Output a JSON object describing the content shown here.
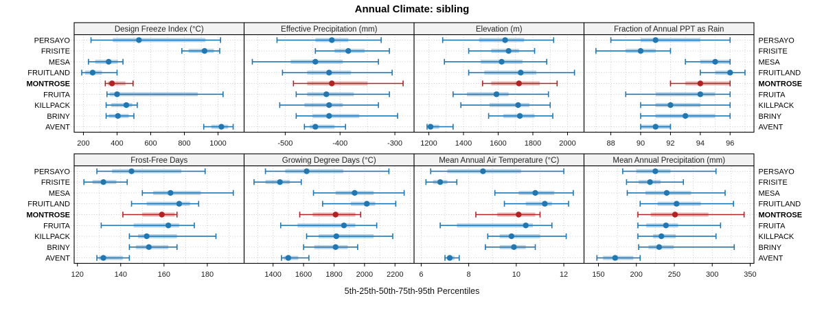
{
  "title": "Annual Climate: sibling",
  "caption": "5th-25th-50th-75th-95th Percentiles",
  "colors": {
    "series": "#1f77b4",
    "highlight": "#b22222",
    "band_opacity": 0.32,
    "grid": "#c3c3c3",
    "panel_header_bg": "#f2f2f2",
    "panel_border": "#000000",
    "text": "#000000",
    "tick_text": "#1a1a1a"
  },
  "stations": [
    "PERSAYO",
    "FRISITE",
    "MESA",
    "FRUITLAND",
    "MONTROSE",
    "FRUITA",
    "KILLPACK",
    "BRINY",
    "AVENT"
  ],
  "highlight_station": "MONTROSE",
  "chart_data": {
    "type": "scatter",
    "variant": "percentile-dot-interval-trellis",
    "percentiles": [
      5,
      25,
      50,
      75,
      95
    ],
    "categories": [
      "PERSAYO",
      "FRISITE",
      "MESA",
      "FRUITLAND",
      "MONTROSE",
      "FRUITA",
      "KILLPACK",
      "BRINY",
      "AVENT"
    ],
    "highlight": "MONTROSE",
    "grid": true,
    "legend": "none",
    "layout": {
      "rows": 2,
      "cols": 4
    },
    "panels": [
      {
        "title": "Design Freeze Index (°C)",
        "xticks": [
          200,
          400,
          600,
          800,
          1000
        ],
        "xlim": [
          145,
          1155
        ],
        "minor_step": 100,
        "values": [
          [
            245,
            375,
            530,
            925,
            1015
          ],
          [
            785,
            825,
            920,
            975,
            1010
          ],
          [
            230,
            270,
            350,
            405,
            435
          ],
          [
            190,
            210,
            255,
            310,
            400
          ],
          [
            330,
            345,
            370,
            450,
            495
          ],
          [
            340,
            355,
            400,
            880,
            1030
          ],
          [
            335,
            365,
            455,
            490,
            520
          ],
          [
            335,
            350,
            405,
            470,
            500
          ],
          [
            915,
            960,
            1020,
            1060,
            1090
          ]
        ]
      },
      {
        "title": "Effective Precipitation (mm)",
        "xticks": [
          -500,
          -400,
          -300
        ],
        "xlim": [
          -575,
          -265
        ],
        "minor_step": 50,
        "values": [
          [
            -515,
            -445,
            -415,
            -385,
            -325
          ],
          [
            -445,
            -410,
            -385,
            -355,
            -310
          ],
          [
            -560,
            -490,
            -445,
            -395,
            -330
          ],
          [
            -505,
            -460,
            -420,
            -380,
            -305
          ],
          [
            -485,
            -460,
            -415,
            -350,
            -285
          ],
          [
            -480,
            -460,
            -425,
            -375,
            -310
          ],
          [
            -510,
            -465,
            -420,
            -395,
            -330
          ],
          [
            -480,
            -450,
            -420,
            -365,
            -295
          ],
          [
            -465,
            -455,
            -445,
            -410,
            -390
          ]
        ]
      },
      {
        "title": "Elevation (m)",
        "xticks": [
          1200,
          1400,
          1600,
          1800,
          2000
        ],
        "xlim": [
          1115,
          2095
        ],
        "minor_step": 100,
        "values": [
          [
            1280,
            1490,
            1640,
            1750,
            1920
          ],
          [
            1430,
            1560,
            1660,
            1720,
            1810
          ],
          [
            1290,
            1500,
            1620,
            1740,
            1880
          ],
          [
            1430,
            1520,
            1730,
            1820,
            2040
          ],
          [
            1510,
            1560,
            1720,
            1840,
            1940
          ],
          [
            1340,
            1420,
            1590,
            1660,
            1890
          ],
          [
            1385,
            1550,
            1715,
            1780,
            1900
          ],
          [
            1545,
            1630,
            1725,
            1810,
            1915
          ],
          [
            1190,
            1200,
            1210,
            1260,
            1340
          ]
        ]
      },
      {
        "title": "Fraction of Annual PPT as Rain",
        "xticks": [
          88,
          90,
          92,
          94,
          96
        ],
        "xlim": [
          86.2,
          97.6
        ],
        "minor_step": 1,
        "values": [
          [
            88,
            90,
            91,
            94,
            96
          ],
          [
            87,
            89,
            90,
            91,
            92
          ],
          [
            93,
            94,
            95,
            96,
            96
          ],
          [
            94,
            95,
            96,
            96,
            97
          ],
          [
            92,
            93,
            94,
            96,
            96
          ],
          [
            89,
            91,
            94,
            95,
            96
          ],
          [
            90,
            91,
            92,
            94,
            96
          ],
          [
            90,
            91,
            93,
            95,
            96
          ],
          [
            90,
            90,
            91,
            92,
            92
          ]
        ]
      },
      {
        "title": "Frost-Free Days",
        "xticks": [
          120,
          140,
          160,
          180
        ],
        "xlim": [
          118.5,
          197
        ],
        "minor_step": 10,
        "values": [
          [
            129,
            136,
            145,
            168,
            179
          ],
          [
            123,
            127,
            132,
            138,
            143
          ],
          [
            150,
            155,
            163,
            177,
            192
          ],
          [
            145,
            152,
            167,
            172,
            176
          ],
          [
            141,
            150,
            159,
            165,
            166
          ],
          [
            131,
            146,
            162,
            167,
            174
          ],
          [
            144,
            148,
            152,
            166,
            184
          ],
          [
            144,
            147,
            153,
            162,
            166
          ],
          [
            129,
            130,
            132,
            141,
            144
          ]
        ]
      },
      {
        "title": "Growing Degree Days (°C)",
        "xticks": [
          1400,
          1600,
          1800,
          2000,
          2200
        ],
        "xlim": [
          1210,
          2325
        ],
        "minor_step": 100,
        "values": [
          [
            1350,
            1480,
            1620,
            1860,
            2160
          ],
          [
            1275,
            1350,
            1445,
            1510,
            1585
          ],
          [
            1665,
            1810,
            1935,
            2060,
            2260
          ],
          [
            1725,
            1910,
            2015,
            2070,
            2205
          ],
          [
            1575,
            1660,
            1810,
            1940,
            1975
          ],
          [
            1450,
            1560,
            1865,
            1940,
            2080
          ],
          [
            1620,
            1700,
            1815,
            2060,
            2185
          ],
          [
            1600,
            1670,
            1810,
            1890,
            1955
          ],
          [
            1455,
            1470,
            1500,
            1565,
            1635
          ]
        ]
      },
      {
        "title": "Mean Annual Air Temperature (°C)",
        "xticks": [
          6,
          8,
          10,
          12
        ],
        "xlim": [
          5.7,
          12.85
        ],
        "minor_step": 1,
        "values": [
          [
            6.4,
            7.1,
            8.6,
            10.2,
            12.0
          ],
          [
            6.2,
            6.5,
            6.8,
            7.1,
            7.5
          ],
          [
            9.1,
            10.1,
            10.8,
            11.6,
            12.4
          ],
          [
            9.5,
            10.4,
            11.2,
            11.5,
            12.2
          ],
          [
            8.3,
            9.2,
            10.1,
            10.8,
            11.0
          ],
          [
            6.8,
            7.5,
            10.4,
            10.7,
            11.5
          ],
          [
            8.8,
            9.3,
            9.8,
            11.0,
            12.1
          ],
          [
            8.7,
            9.3,
            9.9,
            10.4,
            10.8
          ],
          [
            7.0,
            7.1,
            7.2,
            7.4,
            7.6
          ]
        ]
      },
      {
        "title": "Mean Annual Precipitation (mm)",
        "xticks": [
          150,
          200,
          250,
          300,
          350
        ],
        "xlim": [
          131,
          355
        ],
        "minor_step": 25,
        "values": [
          [
            182,
            200,
            225,
            245,
            305
          ],
          [
            187,
            203,
            218,
            232,
            262
          ],
          [
            188,
            212,
            240,
            272,
            317
          ],
          [
            205,
            228,
            253,
            285,
            328
          ],
          [
            202,
            219,
            251,
            295,
            342
          ],
          [
            202,
            213,
            239,
            255,
            311
          ],
          [
            202,
            222,
            233,
            252,
            305
          ],
          [
            203,
            216,
            230,
            249,
            329
          ],
          [
            148,
            156,
            172,
            196,
            205
          ]
        ]
      }
    ]
  }
}
